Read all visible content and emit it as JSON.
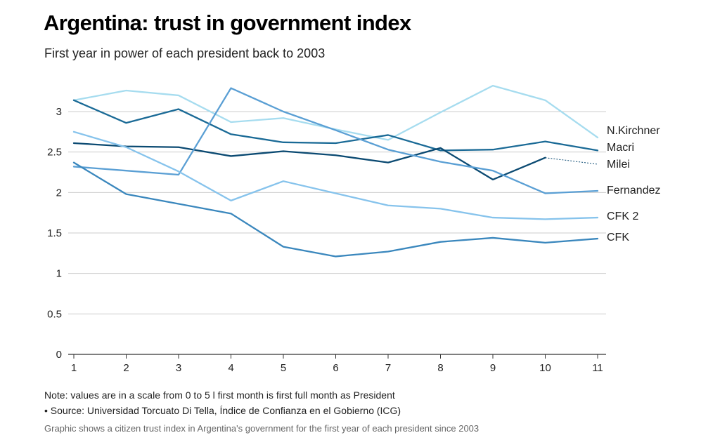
{
  "chart_data": {
    "type": "line",
    "title": "Argentina: trust in government index",
    "subtitle": "First year in power of each president back to 2003",
    "xlabel": "",
    "ylabel": "",
    "x": [
      1,
      2,
      3,
      4,
      5,
      6,
      7,
      8,
      9,
      10,
      11
    ],
    "xlim": [
      1,
      11
    ],
    "ylim": [
      0,
      3
    ],
    "yticks": [
      0,
      0.5,
      1,
      1.5,
      2,
      2.5,
      3
    ],
    "yticklabels": [
      "0",
      "0.5",
      "1",
      "1.5",
      "2",
      "2.5",
      "3"
    ],
    "grid": true,
    "series": [
      {
        "name": "N.Kirchner",
        "color": "#a6dcef",
        "values": [
          3.14,
          3.26,
          3.2,
          2.87,
          2.92,
          2.78,
          2.65,
          2.99,
          3.32,
          3.14,
          2.68
        ]
      },
      {
        "name": "Macri",
        "color": "#1a6a96",
        "values": [
          3.14,
          2.86,
          3.03,
          2.72,
          2.62,
          2.61,
          2.71,
          2.52,
          2.53,
          2.63,
          2.52
        ]
      },
      {
        "name": "Milei",
        "color": "#0b4a72",
        "values": [
          2.61,
          2.57,
          2.56,
          2.45,
          2.51,
          2.46,
          2.37,
          2.55,
          2.16,
          2.43,
          null
        ],
        "projection": [
          [
            10,
            2.43
          ],
          [
            11,
            2.35
          ]
        ]
      },
      {
        "name": "Fernandez",
        "color": "#5a9fd4",
        "values": [
          2.32,
          2.27,
          2.22,
          3.29,
          3.0,
          2.77,
          2.53,
          2.38,
          2.27,
          1.99,
          2.02
        ]
      },
      {
        "name": "CFK 2",
        "color": "#86c3ec",
        "values": [
          2.75,
          2.56,
          2.26,
          1.9,
          2.14,
          1.99,
          1.84,
          1.8,
          1.69,
          1.67,
          1.69
        ]
      },
      {
        "name": "CFK",
        "color": "#3a87bd",
        "values": [
          2.37,
          1.98,
          1.86,
          1.74,
          1.33,
          1.21,
          1.27,
          1.39,
          1.44,
          1.38,
          1.43
        ]
      }
    ],
    "labels": [
      {
        "text": "N.Kirchner"
      },
      {
        "text": "Macri"
      },
      {
        "text": "Milei"
      },
      {
        "text": "Fernandez"
      },
      {
        "text": "CFK 2"
      },
      {
        "text": "CFK"
      }
    ]
  },
  "footer": {
    "note": "Note: values are in a scale from 0 to 5 l first month is first full month as President",
    "source": "• Source: Universidad Torcuato Di Tella, Índice de Confianza en el Gobierno (ICG)",
    "caption": "Graphic shows a citizen trust index in Argentina's government for the first year of each president since 2003"
  }
}
